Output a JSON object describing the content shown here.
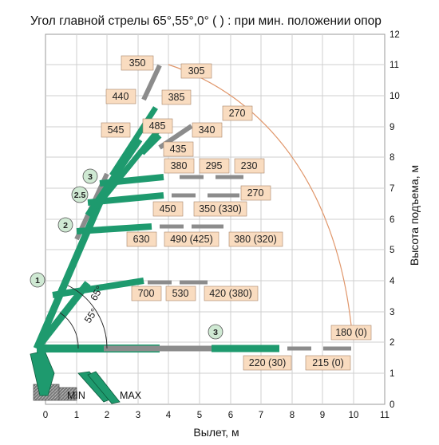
{
  "title": "Угол главной стрелы 65°,55°,0° ( ) : при мин. положении опор",
  "axes": {
    "x_title": "Вылет, м",
    "y_title": "Высота подъема, м",
    "x_ticks": [
      "0",
      "1",
      "2",
      "3",
      "4",
      "5",
      "6",
      "7",
      "8",
      "9",
      "10",
      "11"
    ],
    "y_ticks": [
      "0",
      "1",
      "2",
      "3",
      "4",
      "5",
      "6",
      "7",
      "8",
      "9",
      "10",
      "11",
      "12"
    ]
  },
  "angles": {
    "a65": "65°",
    "a55": "55°"
  },
  "outriggers": {
    "min": "MIN",
    "max": "MAX"
  },
  "sections": {
    "s1": "1",
    "s2": "2",
    "s25": "2.5",
    "s3_high": "3",
    "s3_low": "3"
  },
  "loads": {
    "l350": "350",
    "l305": "305",
    "l440": "440",
    "l385": "385",
    "l270_top": "270",
    "l545": "545",
    "l485": "485",
    "l340": "340",
    "l435": "435",
    "l380": "380",
    "l295": "295",
    "l230": "230",
    "l270": "270",
    "l450": "450",
    "l350_330": "350 (330)",
    "l630": "630",
    "l490_425": "490 (425)",
    "l380_320": "380 (320)",
    "l700": "700",
    "l530": "530",
    "l420_380": "420 (380)",
    "l180_0": "180 (0)",
    "l220_30": "220 (30)",
    "l215_0": "215 (0)"
  },
  "colors": {
    "boom_green": "#1e9a6e",
    "boom_grey": "#8c8c8c",
    "label_fill": "#f9dcc0",
    "badge_fill": "#cfe9d3",
    "grid": "#cfcfcf",
    "arc": "#e0966a"
  }
}
